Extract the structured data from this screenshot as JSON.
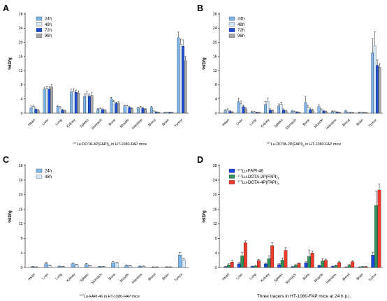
{
  "colors": {
    "h24": "#7cb5ea",
    "h48": "#d6e9fa",
    "h72": "#1f4fd8",
    "h96": "#a7a7a7",
    "fapi46": "#1c46d8",
    "dota2p": "#2f8f5b",
    "dota4p": "#ec3a2d"
  },
  "chart_data": [
    {
      "panel": "A",
      "type": "bar",
      "ylabel": "%ID/g",
      "yticks": [
        "0",
        "4",
        "8",
        "12",
        "16",
        "20",
        "24",
        "28"
      ],
      "ylim": [
        0,
        28
      ],
      "xtitle_sup": "177",
      "xtitle": "Lu-DOTA-4P(FAPI)",
      "xtitle_sub": "4",
      "xtitle_rest": " in HT-1080-FAP mice",
      "legend_position": "top-left",
      "categories": [
        "Heart",
        "Liver",
        "Lung",
        "Kidney",
        "Spleen",
        "Stomach",
        "Bone",
        "Muscle",
        "Intestine",
        "Blood",
        "Brain",
        "Tumor"
      ],
      "series": [
        {
          "name": "24h",
          "color_key": "h24",
          "values": [
            1.5,
            6.8,
            1.9,
            6.0,
            4.7,
            1.1,
            4.0,
            2.0,
            1.4,
            1.6,
            0.2,
            21.3
          ],
          "errors": [
            0.5,
            0.5,
            0.3,
            0.8,
            0.7,
            0.2,
            0.5,
            0.3,
            0.3,
            0.3,
            0.1,
            1.6
          ]
        },
        {
          "name": "48h",
          "color_key": "h48",
          "values": [
            1.8,
            7.0,
            1.5,
            6.2,
            5.4,
            1.2,
            3.2,
            2.0,
            1.6,
            0.5,
            0.2,
            19.5
          ],
          "errors": [
            0.4,
            0.6,
            0.3,
            0.7,
            0.8,
            0.3,
            0.4,
            0.3,
            0.3,
            0.2,
            0.1,
            1.4
          ]
        },
        {
          "name": "72h",
          "color_key": "h72",
          "values": [
            1.1,
            6.8,
            0.9,
            5.9,
            4.8,
            1.0,
            2.8,
            1.6,
            1.4,
            0.3,
            0.2,
            18.9
          ],
          "errors": [
            0.3,
            0.7,
            0.2,
            0.6,
            0.6,
            0.2,
            0.3,
            0.2,
            0.2,
            0.1,
            0.1,
            1.8
          ]
        },
        {
          "name": "96h",
          "color_key": "h96",
          "values": [
            0.8,
            7.4,
            0.6,
            5.7,
            5.0,
            0.8,
            2.9,
            1.3,
            1.1,
            0.2,
            0.2,
            14.8
          ],
          "errors": [
            0.2,
            0.8,
            0.2,
            0.6,
            0.9,
            0.2,
            0.3,
            0.2,
            0.2,
            0.1,
            0.1,
            1.2
          ]
        }
      ]
    },
    {
      "panel": "B",
      "type": "bar",
      "ylabel": "%ID/g",
      "yticks": [
        "0",
        "4",
        "8",
        "12",
        "16",
        "20",
        "24",
        "28"
      ],
      "ylim": [
        0,
        28
      ],
      "xtitle_sup": "177",
      "xtitle": "Lu-DOTA-2P(FAPI)",
      "xtitle_sub": "2",
      "xtitle_rest": " in HT-1080-FAP mice",
      "legend_position": "top-left",
      "categories": [
        "Heart",
        "Liver",
        "Lung",
        "Kidney",
        "Spleen",
        "Stomach",
        "Bone",
        "Muscle",
        "Intestine",
        "Blood",
        "Brain",
        "Tumor"
      ],
      "series": [
        {
          "name": "24h",
          "color_key": "h24",
          "values": [
            0.7,
            3.2,
            0.4,
            2.4,
            2.0,
            0.6,
            3.0,
            1.8,
            0.5,
            0.6,
            0.2,
            17.0
          ],
          "errors": [
            0.3,
            1.0,
            0.2,
            0.8,
            0.6,
            0.2,
            1.8,
            0.6,
            0.2,
            0.2,
            0.1,
            4.0
          ]
        },
        {
          "name": "48h",
          "color_key": "h48",
          "values": [
            0.9,
            2.6,
            0.3,
            3.3,
            2.5,
            0.4,
            1.6,
            0.9,
            0.4,
            0.2,
            0.2,
            19.0
          ],
          "errors": [
            0.3,
            0.8,
            0.2,
            1.0,
            0.6,
            0.2,
            0.6,
            0.3,
            0.2,
            0.1,
            0.1,
            4.0
          ]
        },
        {
          "name": "72h",
          "color_key": "h72",
          "values": [
            0.5,
            1.8,
            0.2,
            0.9,
            0.9,
            0.3,
            1.0,
            0.6,
            0.3,
            0.1,
            0.1,
            13.5
          ],
          "errors": [
            0.2,
            0.5,
            0.1,
            0.3,
            0.3,
            0.1,
            0.4,
            0.2,
            0.1,
            0.1,
            0.1,
            1.5
          ]
        },
        {
          "name": "96h",
          "color_key": "h96",
          "values": [
            0.3,
            1.2,
            0.2,
            0.7,
            0.6,
            0.2,
            0.8,
            0.4,
            0.2,
            0.1,
            0.1,
            13.0
          ],
          "errors": [
            0.1,
            0.4,
            0.1,
            0.2,
            0.2,
            0.1,
            0.3,
            0.2,
            0.1,
            0.1,
            0.1,
            1.0
          ]
        }
      ]
    },
    {
      "panel": "C",
      "type": "bar",
      "ylabel": "%ID/g",
      "yticks": [
        "0",
        "4",
        "8",
        "12",
        "16",
        "20",
        "24",
        "28"
      ],
      "ylim": [
        0,
        28
      ],
      "xtitle_sup": "177",
      "xtitle": "Lu-FAPI-46",
      "xtitle_sub": "",
      "xtitle_rest": " in HT-1080-FAP mice",
      "legend_position": "top-left",
      "categories": [
        "Heart",
        "Liver",
        "Lung",
        "Kidney",
        "Spleen",
        "Stomach",
        "Bone",
        "Muscle",
        "Intestine",
        "Blood",
        "Brain",
        "Tumor"
      ],
      "series": [
        {
          "name": "24h",
          "color_key": "h24",
          "values": [
            0.2,
            1.0,
            0.3,
            1.0,
            0.8,
            0.2,
            1.3,
            0.5,
            0.3,
            0.1,
            0.1,
            3.4
          ],
          "errors": [
            0.1,
            0.4,
            0.1,
            0.2,
            0.3,
            0.1,
            0.3,
            0.2,
            0.1,
            0.1,
            0.1,
            0.8
          ]
        },
        {
          "name": "48h",
          "color_key": "h48",
          "values": [
            0.1,
            0.5,
            0.2,
            0.7,
            0.4,
            0.2,
            1.2,
            0.4,
            0.3,
            0.1,
            0.1,
            2.0
          ],
          "errors": [
            0.1,
            0.2,
            0.1,
            0.2,
            0.1,
            0.1,
            0.2,
            0.1,
            0.1,
            0.1,
            0.1,
            0.4
          ]
        }
      ]
    },
    {
      "panel": "D",
      "type": "bar",
      "ylabel": "%ID/g",
      "yticks": [
        "0",
        "4",
        "8",
        "12",
        "16",
        "20",
        "24",
        "28"
      ],
      "ylim": [
        0,
        28
      ],
      "xtitle_sup": "",
      "xtitle": "Three tracers in HT-1080-FAP mice at 24 h p.i.",
      "xtitle_sub": "",
      "xtitle_rest": "",
      "legend_position": "top-left",
      "categories": [
        "Heart",
        "Liver",
        "Lung",
        "Kidney",
        "Spleen",
        "Stomach",
        "Bone",
        "Muscle",
        "Intestine",
        "Blood",
        "Brain",
        "Tumor"
      ],
      "series": [
        {
          "name_sup": "177",
          "name": "Lu-FAPI-46",
          "name_sub": "",
          "color_key": "fapi46",
          "values": [
            0.2,
            1.0,
            0.3,
            1.0,
            0.8,
            0.2,
            1.3,
            0.5,
            0.3,
            0.1,
            0.1,
            3.4
          ],
          "errors": [
            0.1,
            0.4,
            0.1,
            0.2,
            0.3,
            0.1,
            0.3,
            0.2,
            0.1,
            0.1,
            0.1,
            0.8
          ]
        },
        {
          "name_sup": "177",
          "name": "Lu-DOTA-2P(FAPI)",
          "name_sub": "2",
          "color_key": "dota2p",
          "values": [
            0.7,
            3.2,
            0.4,
            2.4,
            2.0,
            0.6,
            3.0,
            1.8,
            0.5,
            0.6,
            0.2,
            17.0
          ],
          "errors": [
            0.3,
            1.0,
            0.2,
            0.8,
            0.6,
            0.2,
            1.8,
            0.6,
            0.2,
            0.2,
            0.1,
            4.0
          ]
        },
        {
          "name_sup": "177",
          "name": "Lu-DOTA-4P(FAPI)",
          "name_sub": "4",
          "color_key": "dota4p",
          "values": [
            1.5,
            6.8,
            1.9,
            6.0,
            4.7,
            1.1,
            4.0,
            2.0,
            1.4,
            1.6,
            0.2,
            21.3
          ],
          "errors": [
            0.5,
            0.5,
            0.3,
            0.8,
            0.7,
            0.2,
            0.5,
            0.3,
            0.3,
            0.3,
            0.1,
            1.6
          ]
        }
      ]
    }
  ]
}
